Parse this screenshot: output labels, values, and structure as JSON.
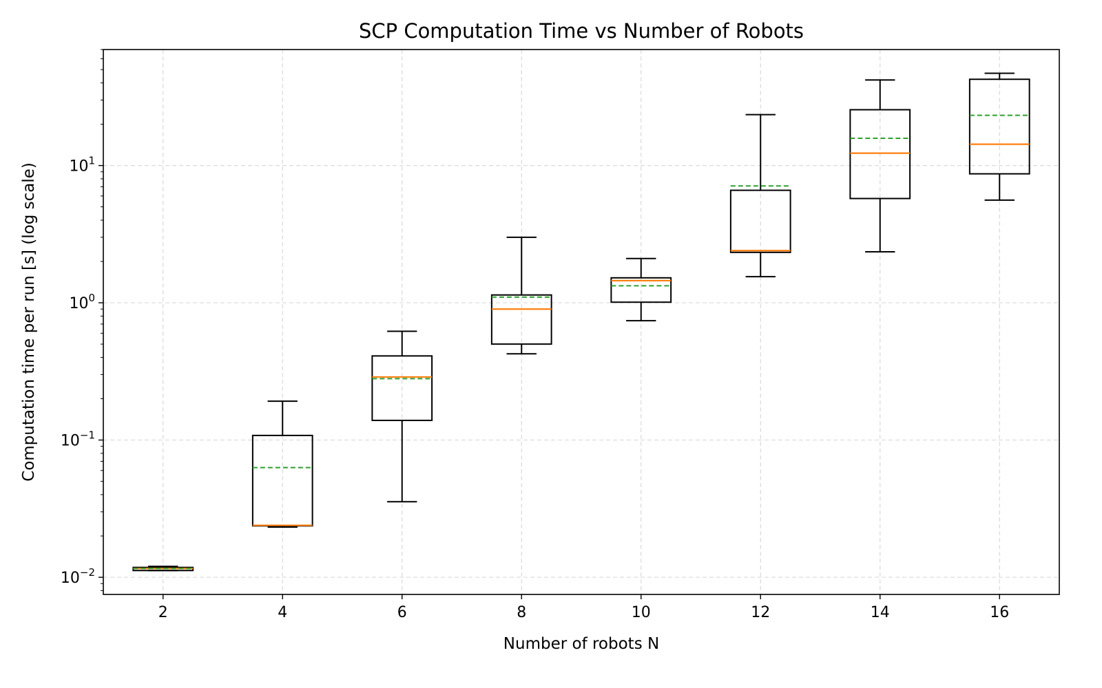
{
  "chart_data": {
    "type": "boxplot",
    "title": "SCP Computation Time vs Number of Robots",
    "xlabel": "Number of robots N",
    "ylabel": "Computation time per run [s] (log scale)",
    "y_scale": "log",
    "ylim": [
      0.0075,
      70
    ],
    "y_ticks": [
      {
        "value": 0.01,
        "base": "10",
        "exp": "−2"
      },
      {
        "value": 0.1,
        "base": "10",
        "exp": "−1"
      },
      {
        "value": 1,
        "base": "10",
        "exp": "0"
      },
      {
        "value": 10,
        "base": "10",
        "exp": "1"
      }
    ],
    "grid": true,
    "mean_style": "dashed-line",
    "categories": [
      "2",
      "4",
      "6",
      "8",
      "10",
      "12",
      "14",
      "16"
    ],
    "boxes": [
      {
        "x": "2",
        "whisker_low": 0.0112,
        "q1": 0.0112,
        "median": 0.0116,
        "mean": 0.0116,
        "q3": 0.0118,
        "whisker_high": 0.012
      },
      {
        "x": "4",
        "whisker_low": 0.0232,
        "q1": 0.0237,
        "median": 0.0239,
        "mean": 0.063,
        "q3": 0.108,
        "whisker_high": 0.192
      },
      {
        "x": "6",
        "whisker_low": 0.0355,
        "q1": 0.139,
        "median": 0.288,
        "mean": 0.28,
        "q3": 0.41,
        "whisker_high": 0.62
      },
      {
        "x": "8",
        "whisker_low": 0.425,
        "q1": 0.5,
        "median": 0.9,
        "mean": 1.1,
        "q3": 1.14,
        "whisker_high": 3.0
      },
      {
        "x": "10",
        "whisker_low": 0.74,
        "q1": 1.01,
        "median": 1.45,
        "mean": 1.33,
        "q3": 1.52,
        "whisker_high": 2.1
      },
      {
        "x": "12",
        "whisker_low": 1.55,
        "q1": 2.33,
        "median": 2.4,
        "mean": 7.1,
        "q3": 6.6,
        "whisker_high": 23.5
      },
      {
        "x": "14",
        "whisker_low": 2.35,
        "q1": 5.75,
        "median": 12.3,
        "mean": 15.8,
        "q3": 25.5,
        "whisker_high": 42
      },
      {
        "x": "16",
        "whisker_low": 5.6,
        "q1": 8.7,
        "median": 14.3,
        "mean": 23.2,
        "q3": 42.5,
        "whisker_high": 47
      }
    ],
    "colors": {
      "box": "#000000",
      "median": "#ff7f0e",
      "mean": "#2ca02c",
      "grid": "#d9d9d9"
    }
  }
}
